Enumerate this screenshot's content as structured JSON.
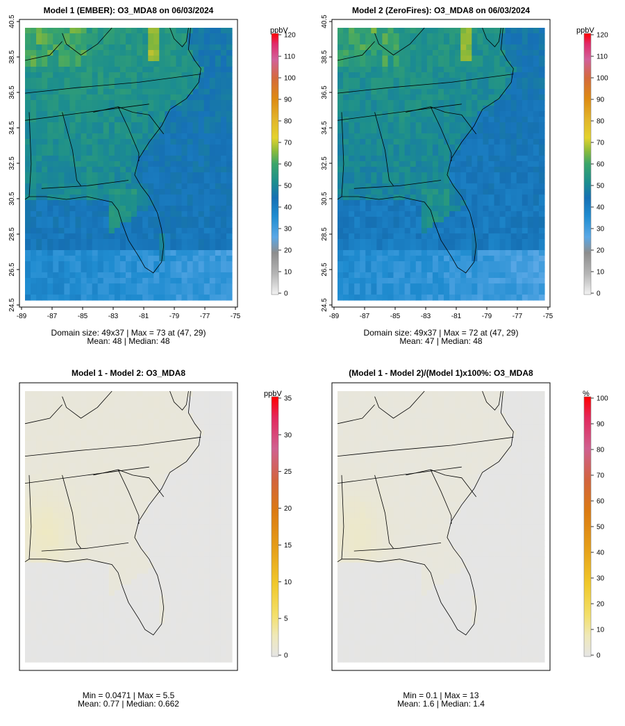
{
  "chart_data": [
    {
      "type": "heatmap",
      "panel": "top-left",
      "title": "Model 1 (EMBER): O3_MDA8 on 06/03/2024",
      "units": "ppbV",
      "colorbar_range": [
        0,
        120
      ],
      "colorbar_ticks": [
        "0",
        "10",
        "20",
        "30",
        "40",
        "50",
        "60",
        "70",
        "80",
        "90",
        "100",
        "110",
        "120"
      ],
      "x_ticks": [
        "-89",
        "-87",
        "-85",
        "-83",
        "-81",
        "-79",
        "-77",
        "-75"
      ],
      "y_ticks": [
        "24.5",
        "26.5",
        "28.5",
        "30.5",
        "32.5",
        "34.5",
        "36.5",
        "38.5",
        "40.5"
      ],
      "x_range": [
        -89,
        -75
      ],
      "y_range": [
        24.5,
        40.5
      ],
      "grid_size": [
        49,
        37
      ],
      "domain_size": "49x37",
      "max_value": 73,
      "max_location": "(47, 29)",
      "mean": 48,
      "median": 48,
      "stats_line1": "Domain size: 49x37 | Max = 73 at (47, 29)",
      "stats_line2": "Mean: 48 |  Median: 48"
    },
    {
      "type": "heatmap",
      "panel": "top-right",
      "title": "Model 2 (ZeroFires): O3_MDA8 on 06/03/2024",
      "units": "ppbV",
      "colorbar_range": [
        0,
        120
      ],
      "colorbar_ticks": [
        "0",
        "10",
        "20",
        "30",
        "40",
        "50",
        "60",
        "70",
        "80",
        "90",
        "100",
        "110",
        "120"
      ],
      "x_ticks": [
        "-89",
        "-87",
        "-85",
        "-83",
        "-81",
        "-79",
        "-77",
        "-75"
      ],
      "y_ticks": [
        "24.5",
        "26.5",
        "28.5",
        "30.5",
        "32.5",
        "34.5",
        "36.5",
        "38.5",
        "40.5"
      ],
      "x_range": [
        -89,
        -75
      ],
      "y_range": [
        24.5,
        40.5
      ],
      "grid_size": [
        49,
        37
      ],
      "domain_size": "49x37",
      "max_value": 72,
      "max_location": "(47, 29)",
      "mean": 47,
      "median": 48,
      "stats_line1": "Domain size: 49x37 | Max = 72 at (47, 29)",
      "stats_line2": "Mean: 47 |  Median: 48"
    },
    {
      "type": "heatmap",
      "panel": "bottom-left",
      "title": "Model 1 - Model 2: O3_MDA8",
      "units": "ppbV",
      "colorbar_range": [
        0,
        35
      ],
      "colorbar_ticks": [
        "0",
        "5",
        "10",
        "15",
        "20",
        "25",
        "30",
        "35"
      ],
      "min": 0.0471,
      "max": 5.5,
      "mean": 0.77,
      "median": 0.662,
      "stats_line1": "Min = 0.0471 | Max = 5.5",
      "stats_line2": "Mean: 0.77 |  Median: 0.662"
    },
    {
      "type": "heatmap",
      "panel": "bottom-right",
      "title": "(Model 1 - Model 2)/(Model 1)x100%: O3_MDA8",
      "units": "%",
      "colorbar_range": [
        0,
        100
      ],
      "colorbar_ticks": [
        "0",
        "10",
        "20",
        "30",
        "40",
        "50",
        "60",
        "70",
        "80",
        "90",
        "100"
      ],
      "min": 0.1,
      "max": 13,
      "mean": 1.6,
      "median": 1.4,
      "stats_line1": "Min = 0.1 | Max = 13",
      "stats_line2": "Mean: 1.6 |  Median: 1.4"
    }
  ],
  "colors": {
    "abs_scale": [
      "#f2f2f2",
      "#bebebe",
      "#8f8f8f",
      "#5aa8e6",
      "#1f8cd0",
      "#1670b4",
      "#1c8e8e",
      "#3aa56a",
      "#86b83a",
      "#e2c72a",
      "#dd9a16",
      "#d96b12",
      "#d2604e",
      "#d1609a",
      "#e0206f",
      "#ff0000"
    ],
    "diff_scale": [
      "#e5e5e5",
      "#efe9c0",
      "#f4e27a",
      "#f2cf2a",
      "#e9a81a",
      "#de7f12",
      "#d3643a",
      "#d0608a",
      "#e61f55",
      "#ff0000"
    ],
    "land_low": "#1a8fb0",
    "ocean": "#2b9fd2"
  }
}
